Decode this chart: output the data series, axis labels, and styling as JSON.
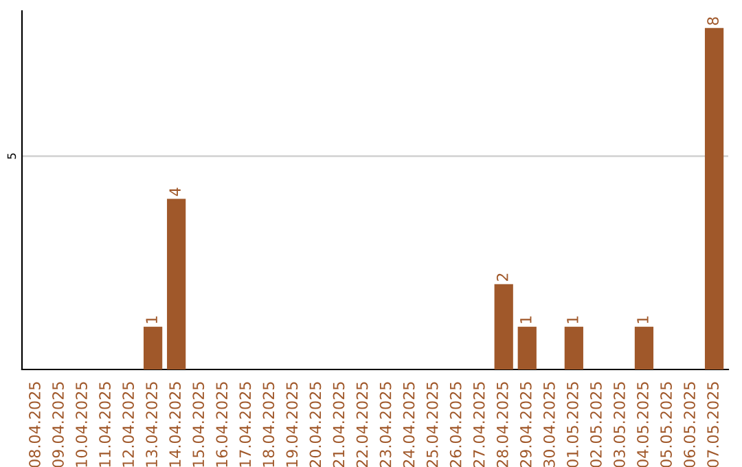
{
  "chart_data": {
    "type": "bar",
    "categories": [
      "08.04.2025",
      "09.04.2025",
      "10.04.2025",
      "11.04.2025",
      "12.04.2025",
      "13.04.2025",
      "14.04.2025",
      "15.04.2025",
      "16.04.2025",
      "17.04.2025",
      "18.04.2025",
      "19.04.2025",
      "20.04.2025",
      "21.04.2025",
      "22.04.2025",
      "23.04.2025",
      "24.04.2025",
      "25.04.2025",
      "26.04.2025",
      "27.04.2025",
      "28.04.2025",
      "29.04.2025",
      "30.04.2025",
      "01.05.2025",
      "02.05.2025",
      "03.05.2025",
      "04.05.2025",
      "05.05.2025",
      "06.05.2025",
      "07.05.2025"
    ],
    "values": [
      0,
      0,
      0,
      0,
      0,
      1,
      4,
      0,
      0,
      0,
      0,
      0,
      0,
      0,
      0,
      0,
      0,
      0,
      0,
      0,
      2,
      1,
      0,
      1,
      0,
      0,
      1,
      0,
      0,
      8
    ],
    "value_labels": [
      null,
      null,
      null,
      null,
      null,
      "1",
      "4",
      null,
      null,
      null,
      null,
      null,
      null,
      null,
      null,
      null,
      null,
      null,
      null,
      null,
      "2",
      "1",
      null,
      "1",
      null,
      null,
      "1",
      null,
      null,
      "8"
    ],
    "color": "#a0582a",
    "ylim": [
      0,
      8.4
    ],
    "yticks": [
      5
    ],
    "grid": "y",
    "legend": false
  }
}
